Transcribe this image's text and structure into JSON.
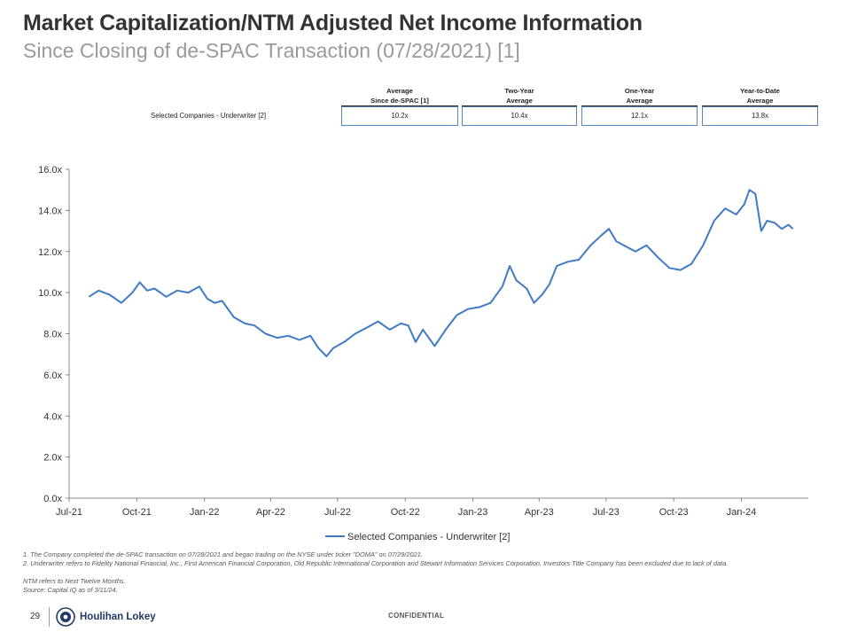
{
  "header": {
    "title": "Market Capitalization/NTM Adjusted Net Income Information",
    "subtitle": "Since Closing of de-SPAC Transaction (07/28/2021) [1]"
  },
  "summary_table": {
    "columns": [
      {
        "line1": "Average",
        "line2": "Since de-SPAC [1]"
      },
      {
        "line1": "Two-Year",
        "line2": "Average"
      },
      {
        "line1": "One-Year",
        "line2": "Average"
      },
      {
        "line1": "Year-to-Date",
        "line2": "Average"
      }
    ],
    "row_label": "Selected Companies - Underwriter [2]",
    "values": [
      "10.2x",
      "10.4x",
      "12.1x",
      "13.8x"
    ]
  },
  "chart_data": {
    "type": "line",
    "x_tick_labels": [
      "Jul-21",
      "Oct-21",
      "Jan-22",
      "Apr-22",
      "Jul-22",
      "Oct-22",
      "Jan-23",
      "Apr-23",
      "Jul-23",
      "Oct-23",
      "Jan-24"
    ],
    "y_tick_labels": [
      "0.0x",
      "2.0x",
      "4.0x",
      "6.0x",
      "8.0x",
      "10.0x",
      "12.0x",
      "14.0x",
      "16.0x"
    ],
    "ylim": [
      0,
      16
    ],
    "grid": false,
    "legend_position": "bottom",
    "line_color": "#3f7bc4",
    "series": [
      {
        "name": "Selected Companies - Underwriter [2]",
        "x": [
          "2021-07-28",
          "2021-08-10",
          "2021-08-25",
          "2021-09-10",
          "2021-09-25",
          "2021-10-05",
          "2021-10-15",
          "2021-10-25",
          "2021-11-10",
          "2021-11-25",
          "2021-12-10",
          "2021-12-25",
          "2022-01-05",
          "2022-01-15",
          "2022-01-25",
          "2022-02-10",
          "2022-02-25",
          "2022-03-10",
          "2022-03-25",
          "2022-04-10",
          "2022-04-25",
          "2022-05-10",
          "2022-05-25",
          "2022-06-05",
          "2022-06-16",
          "2022-06-25",
          "2022-07-10",
          "2022-07-25",
          "2022-08-10",
          "2022-08-25",
          "2022-09-10",
          "2022-09-25",
          "2022-10-05",
          "2022-10-15",
          "2022-10-25",
          "2022-11-10",
          "2022-11-25",
          "2022-12-10",
          "2022-12-25",
          "2023-01-10",
          "2023-01-25",
          "2023-02-10",
          "2023-02-20",
          "2023-03-01",
          "2023-03-15",
          "2023-03-25",
          "2023-04-05",
          "2023-04-15",
          "2023-04-25",
          "2023-05-10",
          "2023-05-25",
          "2023-06-10",
          "2023-06-25",
          "2023-07-05",
          "2023-07-15",
          "2023-07-25",
          "2023-08-10",
          "2023-08-25",
          "2023-09-10",
          "2023-09-25",
          "2023-10-10",
          "2023-10-25",
          "2023-11-10",
          "2023-11-25",
          "2023-12-10",
          "2023-12-25",
          "2024-01-05",
          "2024-01-12",
          "2024-01-20",
          "2024-01-28",
          "2024-02-05",
          "2024-02-15",
          "2024-02-25",
          "2024-03-05",
          "2024-03-11"
        ],
        "values": [
          9.8,
          10.1,
          9.9,
          9.5,
          10.0,
          10.5,
          10.1,
          10.2,
          9.8,
          10.1,
          10.0,
          10.3,
          9.7,
          9.5,
          9.6,
          8.8,
          8.5,
          8.4,
          8.0,
          7.8,
          7.9,
          7.7,
          7.9,
          7.3,
          6.9,
          7.3,
          7.6,
          8.0,
          8.3,
          8.6,
          8.2,
          8.5,
          8.4,
          7.6,
          8.2,
          7.4,
          8.2,
          8.9,
          9.2,
          9.3,
          9.5,
          10.3,
          11.3,
          10.6,
          10.2,
          9.5,
          9.9,
          10.4,
          11.3,
          11.5,
          11.6,
          12.3,
          12.8,
          13.1,
          12.5,
          12.3,
          12.0,
          12.3,
          11.7,
          11.2,
          11.1,
          11.4,
          12.3,
          13.5,
          14.1,
          13.8,
          14.3,
          15.0,
          14.8,
          13.0,
          13.5,
          13.4,
          13.1,
          13.3,
          13.1
        ]
      }
    ]
  },
  "footnotes": {
    "line1": "1. The Company completed the de-SPAC transaction on 07/28/2021 and began trading on the NYSE under ticker \"DOMA\" on 07/29/2021.",
    "line2": "2. Underwriter refers to Fidelity National Financial, Inc., First American Financial Corporation, Old Republic International Corporation and Stewart Information Services Corporation. Investors Title Company has been excluded due to lack of data.",
    "line3": "NTM refers to Next Twelve Months.",
    "line4": "Source: Capital IQ as of 3/11/24."
  },
  "footer": {
    "page_number": "29",
    "brand": "Houlihan Lokey",
    "confidential": "CONFIDENTIAL"
  }
}
